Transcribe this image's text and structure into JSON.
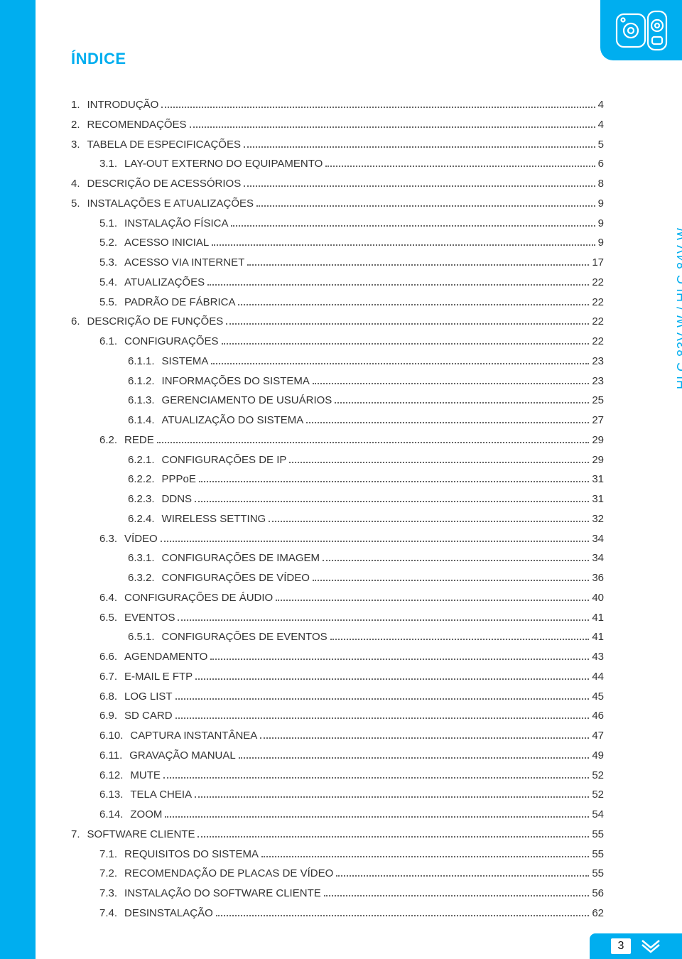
{
  "colors": {
    "accent": "#00aeef",
    "text": "#333333",
    "dots": "#666666",
    "page_bg": "#ffffff"
  },
  "side_label": "HLC-83V-W / HLC-84V-W",
  "title": "ÍNDICE",
  "page_number": "3",
  "toc": [
    {
      "level": 1,
      "num": "1.",
      "label": "INTRODUÇÃO",
      "page": "4"
    },
    {
      "level": 1,
      "num": "2.",
      "label": "RECOMENDAÇÕES",
      "page": "4"
    },
    {
      "level": 1,
      "num": "3.",
      "label": "TABELA DE ESPECIFICAÇÕES",
      "page": "5"
    },
    {
      "level": 2,
      "num": "3.1.",
      "label": "LAY-OUT EXTERNO DO EQUIPAMENTO",
      "page": "6"
    },
    {
      "level": 1,
      "num": "4.",
      "label": "DESCRIÇÃO DE ACESSÓRIOS",
      "page": "8"
    },
    {
      "level": 1,
      "num": "5.",
      "label": "INSTALAÇÕES E  ATUALIZAÇÕES",
      "page": "9"
    },
    {
      "level": 2,
      "num": "5.1.",
      "label": "INSTALAÇÃO FÍSICA",
      "page": "9"
    },
    {
      "level": 2,
      "num": "5.2.",
      "label": "ACESSO INICIAL",
      "page": "9"
    },
    {
      "level": 2,
      "num": "5.3.",
      "label": "ACESSO VIA INTERNET",
      "page": "17"
    },
    {
      "level": 2,
      "num": "5.4.",
      "label": "ATUALIZAÇÕES",
      "page": "22"
    },
    {
      "level": 2,
      "num": "5.5.",
      "label": "PADRÃO DE FÁBRICA",
      "page": "22"
    },
    {
      "level": 1,
      "num": "6.",
      "label": "DESCRIÇÃO DE FUNÇÕES",
      "page": "22"
    },
    {
      "level": 2,
      "num": "6.1.",
      "label": "CONFIGURAÇÕES",
      "page": "22"
    },
    {
      "level": 3,
      "num": "6.1.1.",
      "label": "SISTEMA",
      "page": "23"
    },
    {
      "level": 3,
      "num": "6.1.2.",
      "label": "INFORMAÇÕES DO SISTEMA",
      "page": "23"
    },
    {
      "level": 3,
      "num": "6.1.3.",
      "label": "GERENCIAMENTO DE USUÁRIOS",
      "page": "25"
    },
    {
      "level": 3,
      "num": "6.1.4.",
      "label": "ATUALIZAÇÃO DO SISTEMA",
      "page": "27"
    },
    {
      "level": 2,
      "num": "6.2.",
      "label": "REDE",
      "page": "29"
    },
    {
      "level": 3,
      "num": "6.2.1.",
      "label": "CONFIGURAÇÕES DE IP",
      "page": "29"
    },
    {
      "level": 3,
      "num": "6.2.2.",
      "label": "PPPoE",
      "page": "31"
    },
    {
      "level": 3,
      "num": "6.2.3.",
      "label": "DDNS",
      "page": "31"
    },
    {
      "level": 3,
      "num": "6.2.4.",
      "label": "WIRELESS SETTING",
      "page": "32"
    },
    {
      "level": 2,
      "num": "6.3.",
      "label": "VÍDEO",
      "page": "34"
    },
    {
      "level": 3,
      "num": "6.3.1.",
      "label": "CONFIGURAÇÕES DE IMAGEM",
      "page": "34"
    },
    {
      "level": 3,
      "num": "6.3.2.",
      "label": "CONFIGURAÇÕES DE VÍDEO",
      "page": "36"
    },
    {
      "level": 2,
      "num": "6.4.",
      "label": "CONFIGURAÇÕES DE ÁUDIO",
      "page": "40"
    },
    {
      "level": 2,
      "num": "6.5.",
      "label": "EVENTOS",
      "page": "41"
    },
    {
      "level": 3,
      "num": "6.5.1.",
      "label": "CONFIGURAÇÕES DE EVENTOS",
      "page": "41"
    },
    {
      "level": 2,
      "num": "6.6.",
      "label": "AGENDAMENTO",
      "page": "43"
    },
    {
      "level": 2,
      "num": "6.7.",
      "label": "E-MAIL E FTP",
      "page": "44"
    },
    {
      "level": 2,
      "num": "6.8.",
      "label": "LOG LIST",
      "page": "45"
    },
    {
      "level": 2,
      "num": "6.9.",
      "label": "SD CARD",
      "page": "46"
    },
    {
      "level": 2,
      "num": "6.10.",
      "label": "CAPTURA INSTANTÂNEA",
      "page": "47"
    },
    {
      "level": 2,
      "num": "6.11.",
      "label": "GRAVAÇÃO MANUAL",
      "page": "49"
    },
    {
      "level": 2,
      "num": "6.12.",
      "label": "MUTE",
      "page": "52"
    },
    {
      "level": 2,
      "num": "6.13.",
      "label": "TELA CHEIA",
      "page": "52"
    },
    {
      "level": 2,
      "num": "6.14.",
      "label": "ZOOM",
      "page": "54"
    },
    {
      "level": 1,
      "num": "7.",
      "label": "SOFTWARE CLIENTE",
      "page": "55"
    },
    {
      "level": 2,
      "num": "7.1.",
      "label": "REQUISITOS DO SISTEMA",
      "page": "55"
    },
    {
      "level": 2,
      "num": "7.2.",
      "label": "RECOMENDAÇÃO DE PLACAS DE VÍDEO",
      "page": "55"
    },
    {
      "level": 2,
      "num": "7.3.",
      "label": "INSTALAÇÃO DO SOFTWARE CLIENTE",
      "page": "56"
    },
    {
      "level": 2,
      "num": "7.4.",
      "label": "DESINSTALAÇÃO",
      "page": "62"
    }
  ]
}
